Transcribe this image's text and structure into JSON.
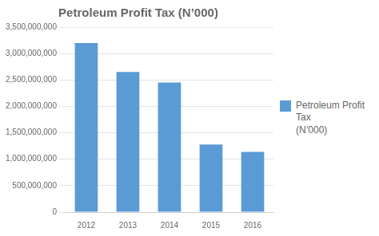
{
  "chart_data": {
    "type": "bar",
    "title": "Petroleum Profit Tax (N’000)",
    "categories": [
      "2012",
      "2013",
      "2014",
      "2015",
      "2016"
    ],
    "series": [
      {
        "name": "Petroleum Profit Tax\n(N’000)",
        "color": "#5B9BD5",
        "values": [
          3200000000,
          2650000000,
          2450000000,
          1280000000,
          1140000000
        ]
      }
    ],
    "ylim": [
      0,
      3500000000
    ],
    "yticks": [
      0,
      {
        "value": 500000000,
        "label": "500,000,000"
      },
      {
        "value": 1000000000,
        "label": "1,000,000,000"
      },
      {
        "value": 1500000000,
        "label": "1,500,000,000"
      },
      {
        "value": 2000000000,
        "label": "2,000,000,000"
      },
      {
        "value": 2500000000,
        "label": "2,500,000,000"
      },
      {
        "value": 3000000000,
        "label": "3,000,000,000"
      },
      {
        "value": 3500000000,
        "label": "3,500,000,000"
      }
    ],
    "grid": true,
    "legend": "right"
  }
}
